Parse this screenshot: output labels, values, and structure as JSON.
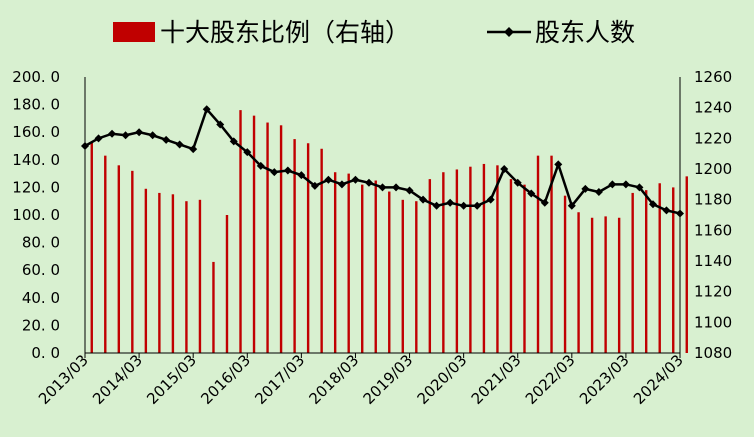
{
  "chart_data": {
    "type": "bar",
    "title": "",
    "legend": {
      "placement": "top",
      "entries": [
        {
          "label": "十大股东比例（右轴）",
          "marker": "bar",
          "color": "#c00000"
        },
        {
          "label": "股东人数",
          "marker": "line-diamond",
          "color": "#000000"
        }
      ]
    },
    "x_tick_labels": [
      "2013/03",
      "2014/03",
      "2015/03",
      "2016/03",
      "2017/03",
      "2018/03",
      "2019/03",
      "2020/03",
      "2021/03",
      "2022/03",
      "2023/03",
      "2024/03"
    ],
    "quarters_per_year": 4,
    "left_axis": {
      "min": 0,
      "max": 200,
      "step": 20,
      "tick_labels": [
        "0. 0",
        "20. 0",
        "40. 0",
        "60. 0",
        "80. 0",
        "100. 0",
        "120. 0",
        "140. 0",
        "160. 0",
        "180. 0",
        "200. 0"
      ]
    },
    "right_axis": {
      "min": 1080,
      "max": 1260,
      "step": 20,
      "tick_labels": [
        "1080",
        "1100",
        "1120",
        "1140",
        "1160",
        "1180",
        "1200",
        "1220",
        "1240",
        "1260"
      ]
    },
    "grid": false,
    "background": "#d8f0d0",
    "series": [
      {
        "name": "十大股东比例（右轴）",
        "type": "bar",
        "color": "#c00000",
        "values": [
          153,
          143,
          136,
          132,
          119,
          116,
          115,
          110,
          111,
          66,
          100,
          176,
          172,
          167,
          165,
          155,
          152,
          148,
          131,
          130,
          122,
          125,
          117,
          111,
          110,
          126,
          131,
          133,
          135,
          137,
          136,
          126,
          122,
          143,
          143,
          114,
          102,
          98,
          99,
          98,
          116,
          118,
          123,
          120,
          128
        ]
      },
      {
        "name": "股东人数",
        "type": "line",
        "color": "#000000",
        "marker": "diamond",
        "values": [
          1215,
          1220,
          1223,
          1222,
          1224,
          1222,
          1219,
          1216,
          1213,
          1239,
          1229,
          1218,
          1211,
          1202,
          1198,
          1199,
          1196,
          1189,
          1193,
          1190,
          1193,
          1191,
          1188,
          1188,
          1186,
          1180,
          1176,
          1178,
          1176,
          1176,
          1180,
          1200,
          1191,
          1184,
          1178,
          1203,
          1176,
          1187,
          1185,
          1190,
          1190,
          1188,
          1177,
          1173,
          1171
        ]
      }
    ]
  }
}
